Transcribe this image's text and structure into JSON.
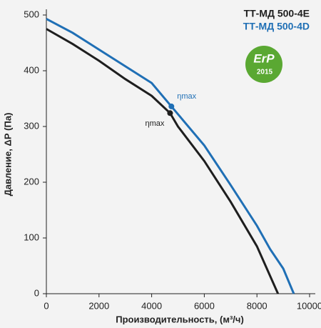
{
  "chart_data": {
    "type": "line",
    "x_label": "Производительность, (м³/ч)",
    "y_label": "Давление, ΔР (Па)",
    "xlim": [
      0,
      10000
    ],
    "ylim": [
      0,
      500
    ],
    "xticks": [
      0,
      2000,
      4000,
      6000,
      8000,
      10000
    ],
    "yticks": [
      0,
      100,
      200,
      300,
      400,
      500
    ],
    "grid": false,
    "legend_position": "upper right",
    "series": [
      {
        "name": "ТТ-МД 500-4E",
        "color": "#1e1e1e",
        "x": [
          0,
          1000,
          2000,
          3000,
          4000,
          4700,
          5000,
          6000,
          7000,
          8000,
          8800
        ],
        "values": [
          475,
          448,
          418,
          385,
          355,
          324,
          300,
          238,
          165,
          85,
          0
        ]
      },
      {
        "name": "ТТ-МД 500-4D",
        "color": "#1f6fb5",
        "x": [
          0,
          1000,
          2000,
          3000,
          4000,
          4750,
          5000,
          6000,
          7000,
          8000,
          8500,
          9000,
          9400
        ],
        "values": [
          493,
          468,
          438,
          408,
          378,
          336,
          322,
          266,
          195,
          122,
          80,
          45,
          0
        ]
      }
    ],
    "markers": [
      {
        "label": "ηmax",
        "x": 4700,
        "y": 324,
        "color": "#1e1e1e"
      },
      {
        "label": "ηmax",
        "x": 4750,
        "y": 336,
        "color": "#1f6fb5"
      }
    ],
    "badge": {
      "title": "ErP",
      "year": "2015"
    }
  }
}
